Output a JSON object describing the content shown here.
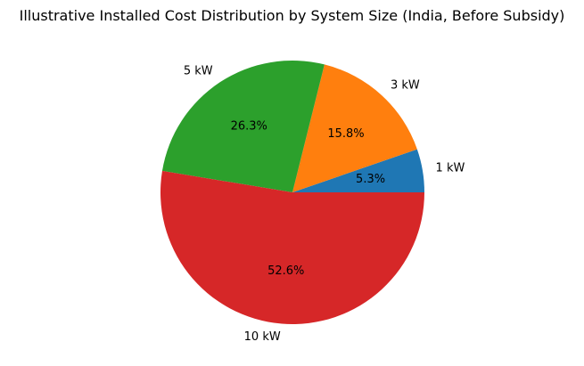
{
  "chart_data": {
    "type": "pie",
    "title": "Illustrative Installed Cost Distribution by System Size (India, Before Subsidy)",
    "categories": [
      "1 kW",
      "3 kW",
      "5 kW",
      "10 kW"
    ],
    "values": [
      5.3,
      15.8,
      26.3,
      52.6
    ],
    "value_labels": [
      "5.3%",
      "15.8%",
      "26.3%",
      "52.6%"
    ],
    "colors": [
      "#1f77b4",
      "#ff7f0e",
      "#2ca02c",
      "#d62728"
    ],
    "start_angle": 0,
    "direction": "counterclockwise",
    "legend": "none"
  }
}
